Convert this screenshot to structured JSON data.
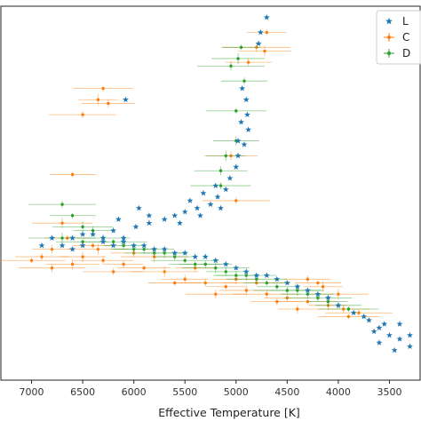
{
  "chart_data": {
    "type": "scatter",
    "title": "",
    "xlabel": "Effective Temperature [K]",
    "ylabel": "",
    "x_inverted": true,
    "xlim": [
      7300,
      3200
    ],
    "ylim": [
      0,
      100
    ],
    "x_ticks": [
      7000,
      6500,
      6000,
      5500,
      5000,
      4500,
      4000,
      3500
    ],
    "x_tick_labels": [
      "7000",
      "6500",
      "6000",
      "5500",
      "5000",
      "4500",
      "4000",
      "3500"
    ],
    "grid": false,
    "legend_placement": "top-right",
    "series": [
      {
        "name": "L",
        "marker": "star",
        "color": "#1f77b4",
        "error_bars": false,
        "points": [
          [
            4700,
            97
          ],
          [
            4760,
            93
          ],
          [
            4780,
            90
          ],
          [
            6080,
            75
          ],
          [
            4900,
            75
          ],
          [
            4890,
            71
          ],
          [
            4880,
            67
          ],
          [
            4920,
            63
          ],
          [
            4980,
            60
          ],
          [
            5000,
            57
          ],
          [
            5060,
            54
          ],
          [
            5100,
            51
          ],
          [
            5180,
            49
          ],
          [
            5250,
            47
          ],
          [
            5380,
            46
          ],
          [
            5500,
            45
          ],
          [
            5600,
            44
          ],
          [
            5700,
            43
          ],
          [
            5850,
            42
          ],
          [
            5980,
            41
          ],
          [
            6200,
            40
          ],
          [
            6400,
            39
          ],
          [
            6600,
            38
          ],
          [
            5200,
            52
          ],
          [
            5320,
            50
          ],
          [
            5450,
            48
          ],
          [
            6100,
            38
          ],
          [
            6300,
            37
          ],
          [
            6500,
            36
          ],
          [
            6700,
            36
          ],
          [
            6800,
            38
          ],
          [
            6900,
            36
          ],
          [
            6200,
            36
          ],
          [
            6000,
            36
          ],
          [
            5800,
            35
          ],
          [
            5600,
            34
          ],
          [
            5400,
            33
          ],
          [
            5200,
            32
          ],
          [
            5000,
            30
          ],
          [
            4800,
            28
          ],
          [
            4600,
            27
          ],
          [
            4400,
            25
          ],
          [
            4200,
            23
          ],
          [
            4000,
            20
          ],
          [
            3850,
            18
          ],
          [
            3700,
            16
          ],
          [
            3600,
            14
          ],
          [
            3500,
            12
          ],
          [
            3400,
            11
          ],
          [
            3300,
            9
          ],
          [
            3450,
            8
          ],
          [
            3550,
            15
          ],
          [
            3650,
            13
          ],
          [
            3750,
            17
          ],
          [
            4100,
            22
          ],
          [
            4300,
            24
          ],
          [
            4500,
            26
          ],
          [
            4700,
            28
          ],
          [
            4900,
            29
          ],
          [
            5100,
            31
          ],
          [
            5300,
            33
          ],
          [
            5500,
            34
          ],
          [
            5700,
            35
          ],
          [
            5900,
            36
          ],
          [
            6100,
            37
          ],
          [
            6300,
            38
          ],
          [
            6500,
            39
          ],
          [
            6600,
            35
          ],
          [
            5850,
            44
          ],
          [
            5950,
            46
          ],
          [
            6150,
            43
          ],
          [
            5550,
            42
          ],
          [
            5350,
            44
          ],
          [
            5150,
            46
          ],
          [
            4980,
            64
          ],
          [
            4950,
            69
          ],
          [
            4940,
            78
          ],
          [
            3400,
            15
          ],
          [
            3300,
            12
          ],
          [
            3600,
            10
          ]
        ]
      },
      {
        "name": "C",
        "marker": "dot",
        "color": "#ff7f0e",
        "error_bars": true,
        "points": [
          [
            4700,
            93
          ],
          [
            4720,
            88
          ],
          [
            4800,
            89
          ],
          [
            4880,
            85
          ],
          [
            6300,
            78
          ],
          [
            6350,
            75
          ],
          [
            6250,
            74
          ],
          [
            6500,
            71
          ],
          [
            6600,
            55
          ],
          [
            6700,
            42
          ],
          [
            6800,
            35
          ],
          [
            6900,
            33
          ],
          [
            7000,
            32
          ],
          [
            6500,
            33
          ],
          [
            6300,
            32
          ],
          [
            6100,
            31
          ],
          [
            5900,
            30
          ],
          [
            5700,
            29
          ],
          [
            5500,
            27
          ],
          [
            5300,
            26
          ],
          [
            5100,
            25
          ],
          [
            4900,
            24
          ],
          [
            4700,
            23
          ],
          [
            4500,
            22
          ],
          [
            4300,
            21
          ],
          [
            4100,
            20
          ],
          [
            3950,
            19
          ],
          [
            3800,
            18
          ],
          [
            4200,
            26
          ],
          [
            4000,
            23
          ],
          [
            4400,
            19
          ],
          [
            4600,
            21
          ],
          [
            4800,
            26
          ],
          [
            5000,
            27
          ],
          [
            5200,
            23
          ],
          [
            5400,
            30
          ],
          [
            5600,
            26
          ],
          [
            5800,
            33
          ],
          [
            6000,
            34
          ],
          [
            6200,
            29
          ],
          [
            6400,
            36
          ],
          [
            6600,
            31
          ],
          [
            6800,
            30
          ],
          [
            4300,
            27
          ],
          [
            3900,
            17
          ],
          [
            4150,
            25
          ],
          [
            5050,
            60
          ],
          [
            5000,
            48
          ],
          [
            6650,
            38
          ],
          [
            6350,
            35
          ]
        ]
      },
      {
        "name": "D",
        "marker": "cross",
        "color": "#2ca02c",
        "error_bars": true,
        "points": [
          [
            4950,
            89
          ],
          [
            4980,
            86
          ],
          [
            5050,
            84
          ],
          [
            4920,
            80
          ],
          [
            5000,
            72
          ],
          [
            5100,
            60
          ],
          [
            5150,
            56
          ],
          [
            6700,
            47
          ],
          [
            6600,
            44
          ],
          [
            6500,
            41
          ],
          [
            6400,
            40
          ],
          [
            6300,
            38
          ],
          [
            6200,
            37
          ],
          [
            6000,
            35
          ],
          [
            5800,
            34
          ],
          [
            5600,
            33
          ],
          [
            5400,
            31
          ],
          [
            5200,
            30
          ],
          [
            5000,
            28
          ],
          [
            4800,
            27
          ],
          [
            4600,
            25
          ],
          [
            4400,
            24
          ],
          [
            4200,
            22
          ],
          [
            4000,
            20
          ],
          [
            3900,
            19
          ],
          [
            4100,
            21
          ],
          [
            4300,
            23
          ],
          [
            4500,
            24
          ],
          [
            4700,
            26
          ],
          [
            4900,
            28
          ],
          [
            5100,
            29
          ],
          [
            5300,
            31
          ],
          [
            5500,
            32
          ],
          [
            5700,
            34
          ],
          [
            5900,
            35
          ],
          [
            6100,
            36
          ],
          [
            6500,
            37
          ],
          [
            6700,
            38
          ],
          [
            5000,
            64
          ],
          [
            5150,
            52
          ]
        ]
      }
    ]
  }
}
